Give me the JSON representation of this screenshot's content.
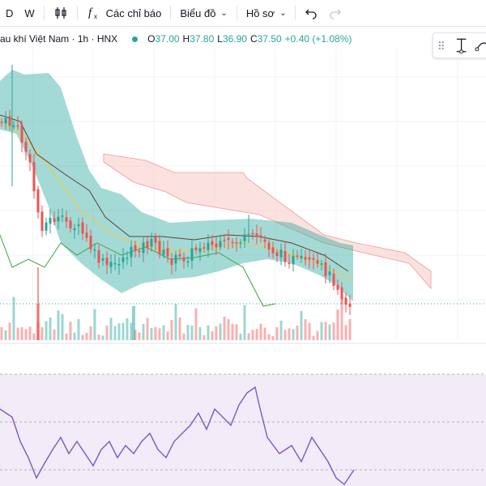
{
  "toolbar": {
    "interval_label": "D",
    "compare_label": "W",
    "indicators_label": "Các chỉ báo",
    "chart_type_label": "Biểu đồ",
    "profile_label": "Hồ sơ"
  },
  "legend": {
    "symbol": "au khí Việt Nam · 1h · HNX",
    "o_label": "O",
    "o": "37.00",
    "h_label": "H",
    "h": "37.80",
    "l_label": "L",
    "l": "36.90",
    "c_label": "C",
    "c": "37.50",
    "change": "+0.40 (+1.08%)"
  },
  "colors": {
    "up": "#26a69a",
    "down": "#ef5350",
    "kumo_green": "#26a69a",
    "kumo_red": "#f7c8c4",
    "rsi_bg": "#ede7f6",
    "rsi_line": "#7e57c2"
  },
  "icons": [
    "candles-icon",
    "function-icon",
    "undo-icon",
    "redo-icon",
    "drag-handle-icon",
    "measure-icon",
    "trend-icon"
  ]
}
